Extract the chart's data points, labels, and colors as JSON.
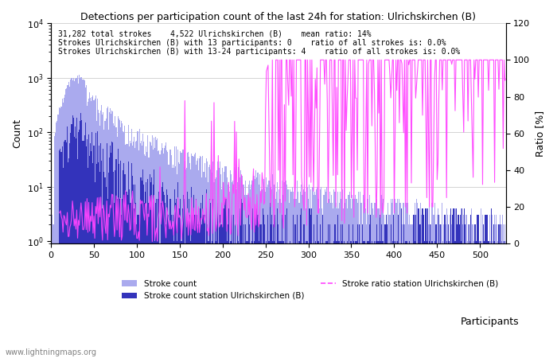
{
  "title": "Detections per participation count of the last 24h for station: Ulrichskirchen (B)",
  "annotation_lines": [
    "31,282 total strokes    4,522 Ulrichskirchen (B)    mean ratio: 14%",
    "Strokes Ulrichskirchen (B) with 13 participants: 0    ratio of all strokes is: 0.0%",
    "Strokes Ulrichskirchen (B) with 13-24 participants: 4    ratio of all strokes is: 0.0%"
  ],
  "xlabel": "Participants",
  "ylabel_left": "Count",
  "ylabel_right": "Ratio [%]",
  "xlim": [
    0,
    530
  ],
  "ylim_right": [
    0,
    120
  ],
  "bar_color_total": "#aaaaee",
  "bar_color_station": "#3333bb",
  "line_color_ratio": "#ff44ff",
  "legend_labels": [
    "Stroke count",
    "Stroke count station Ulrichskirchen (B)",
    "Stroke ratio station Ulrichskirchen (B)"
  ],
  "watermark": "www.lightningmaps.org",
  "right_yticks": [
    0,
    20,
    40,
    60,
    80,
    100,
    120
  ]
}
